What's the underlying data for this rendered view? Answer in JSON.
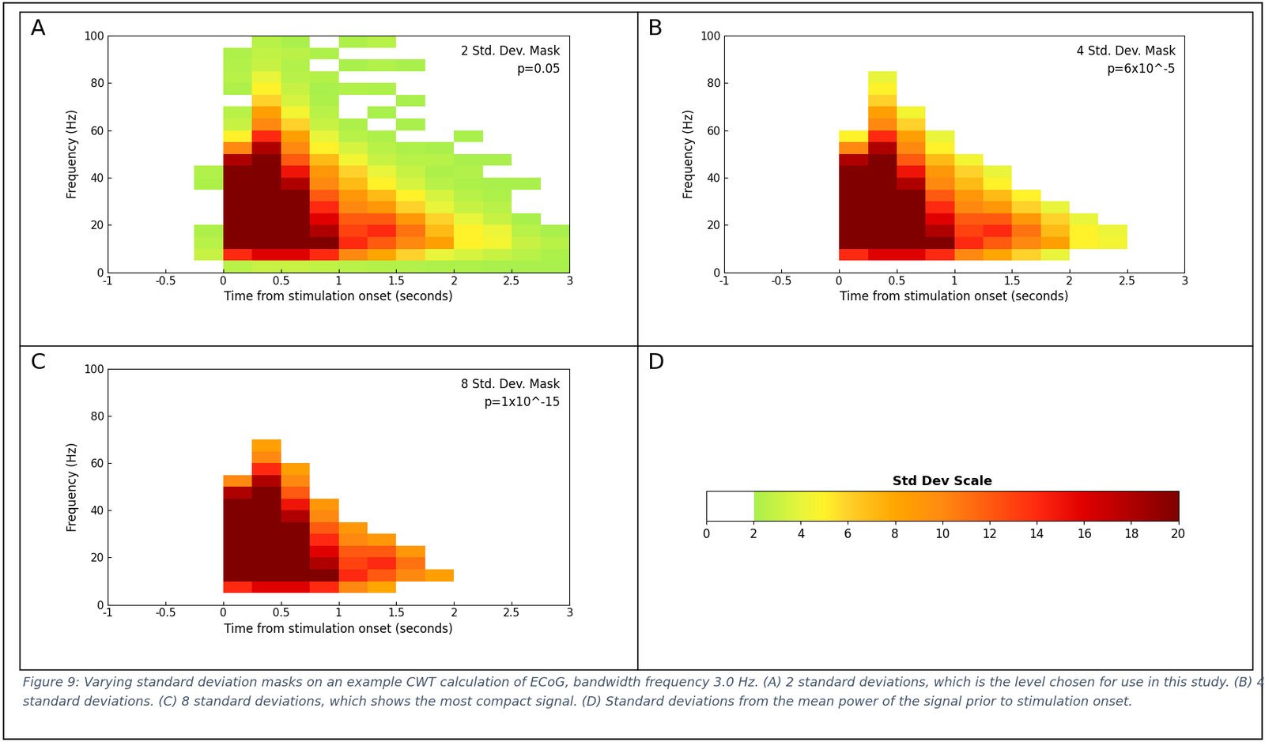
{
  "cwt": {
    "x_edges": [
      -1,
      -0.75,
      -0.5,
      -0.25,
      0,
      0.25,
      0.5,
      0.75,
      1,
      1.25,
      1.5,
      1.75,
      2,
      2.25,
      2.5,
      2.75,
      3
    ],
    "y_edges": [
      0,
      5,
      10,
      15,
      20,
      25,
      30,
      35,
      40,
      45,
      50,
      55,
      60,
      65,
      70,
      75,
      80,
      85,
      90,
      95,
      100
    ],
    "cells": [
      [
        0.5,
        0.5,
        0.5,
        1,
        2.5,
        3,
        3,
        2.8,
        2.5,
        2.4,
        2.3,
        2.2,
        2.2,
        2.1,
        2.1,
        2.1
      ],
      [
        0.5,
        0.5,
        0.5,
        3,
        14,
        16,
        16,
        14,
        10,
        8,
        6,
        4,
        3.5,
        3,
        2.5,
        2.2
      ],
      [
        0.5,
        0.5,
        0.5,
        2.5,
        20,
        20,
        20,
        20,
        14,
        12,
        10,
        8.5,
        5,
        4.5,
        3,
        2.5
      ],
      [
        0.5,
        0.5,
        0.5,
        2.2,
        20,
        20,
        20,
        18,
        13,
        14,
        11,
        7,
        5,
        4.2,
        2.5,
        2.1
      ],
      [
        0.5,
        0.5,
        0.5,
        1.5,
        20,
        20,
        20,
        16,
        12,
        12,
        9,
        6,
        4,
        3,
        2.1,
        1.5
      ],
      [
        0.5,
        0.5,
        0.5,
        1.2,
        20,
        20,
        20,
        14,
        10,
        9,
        6,
        4,
        3,
        2.5,
        1.5,
        1
      ],
      [
        0.5,
        0.5,
        0.5,
        1.5,
        20,
        20,
        20,
        12,
        9,
        7,
        5,
        3.5,
        2.5,
        2.2,
        1.5,
        1
      ],
      [
        0.5,
        0.5,
        0.5,
        2.2,
        20,
        20,
        18,
        10,
        7,
        5,
        3.5,
        2.5,
        2.2,
        2.1,
        2.1,
        1
      ],
      [
        0.5,
        0.5,
        0.5,
        2.3,
        20,
        20,
        15,
        9,
        6,
        4,
        3,
        2.2,
        2.3,
        1.5,
        1.2,
        1
      ],
      [
        0.5,
        0.5,
        0.5,
        1.5,
        18,
        20,
        12,
        7,
        4.5,
        3,
        2.5,
        2.5,
        2.1,
        2.1,
        1,
        1
      ],
      [
        0.5,
        0.5,
        0.5,
        1,
        10,
        18,
        10,
        5,
        3.5,
        2.5,
        2.2,
        2.1,
        1.5,
        1.5,
        1,
        1
      ],
      [
        0.5,
        0.5,
        0.5,
        1,
        5,
        14,
        8.5,
        4,
        2.5,
        2.2,
        1.8,
        1.5,
        2.1,
        1,
        1,
        1
      ],
      [
        0.5,
        0.5,
        0.5,
        1,
        3,
        10,
        6,
        3,
        2.2,
        1.5,
        2.1,
        1,
        1,
        1,
        1,
        1
      ],
      [
        0.5,
        0.5,
        0.5,
        1,
        2.5,
        8.5,
        4.5,
        2.5,
        2,
        2.1,
        1.5,
        1,
        1,
        1,
        1,
        1
      ],
      [
        0.5,
        0.5,
        0.5,
        1,
        2,
        6,
        3.5,
        2.2,
        1.8,
        1.5,
        2.1,
        1,
        1,
        1,
        1,
        1
      ],
      [
        0.5,
        0.5,
        0.5,
        1,
        2.2,
        5,
        3,
        2.1,
        2.3,
        2.2,
        1.2,
        1,
        1,
        1,
        1,
        1
      ],
      [
        0.5,
        0.5,
        0.5,
        1,
        2.5,
        4,
        2.5,
        2.4,
        1.5,
        1.5,
        1.2,
        1,
        1,
        1,
        1,
        1
      ],
      [
        0.5,
        0.5,
        0.5,
        1,
        2.3,
        3,
        2.3,
        1.5,
        2.1,
        2.3,
        2.1,
        1,
        1,
        1,
        1,
        1
      ],
      [
        0.5,
        0.5,
        0.5,
        1,
        2.2,
        2.8,
        2.6,
        2.2,
        1.5,
        1.5,
        1,
        1,
        1,
        1,
        1,
        1
      ],
      [
        0.5,
        0.5,
        0.5,
        1,
        2,
        2.5,
        2.1,
        1.5,
        2.2,
        2.5,
        1,
        1,
        1,
        1,
        1,
        1
      ]
    ]
  },
  "chart_data": [
    {
      "type": "heatmap",
      "label": "A",
      "annotations": [
        "2 Std. Dev. Mask",
        "p=0.05"
      ],
      "threshold": 2,
      "xlabel": "Time from stimulation onset (seconds)",
      "ylabel": "Frequency (Hz)",
      "xlim": [
        -1,
        3
      ],
      "xticks": [
        -1,
        -0.5,
        0,
        0.5,
        1,
        1.5,
        2,
        2.5,
        3
      ],
      "ylim": [
        0,
        100
      ],
      "yticks": [
        0,
        20,
        40,
        60,
        80,
        100
      ]
    },
    {
      "type": "heatmap",
      "label": "B",
      "annotations": [
        "4 Std. Dev. Mask",
        "p=6x10^-5"
      ],
      "threshold": 4,
      "xlabel": "Time from stimulation onset (seconds)",
      "ylabel": "Frequency (Hz)",
      "xlim": [
        -1,
        3
      ],
      "xticks": [
        -1,
        -0.5,
        0,
        0.5,
        1,
        1.5,
        2,
        2.5,
        3
      ],
      "ylim": [
        0,
        100
      ],
      "yticks": [
        0,
        20,
        40,
        60,
        80,
        100
      ]
    },
    {
      "type": "heatmap",
      "label": "C",
      "annotations": [
        "8 Std. Dev. Mask",
        "p=1x10^-15"
      ],
      "threshold": 8,
      "xlabel": "Time from stimulation onset (seconds)",
      "ylabel": "Frequency (Hz)",
      "xlim": [
        -1,
        3
      ],
      "xticks": [
        -1,
        -0.5,
        0,
        0.5,
        1,
        1.5,
        2,
        2.5,
        3
      ],
      "ylim": [
        0,
        100
      ],
      "yticks": [
        0,
        20,
        40,
        60,
        80,
        100
      ]
    }
  ],
  "colorbar": {
    "label": "D",
    "title": "Std Dev Scale",
    "range": [
      0,
      20
    ],
    "ticks": [
      0,
      2,
      4,
      6,
      8,
      10,
      12,
      14,
      16,
      18,
      20
    ]
  },
  "caption": "Figure 9: Varying standard deviation masks on an example CWT calculation of ECoG, bandwidth frequency 3.0 Hz. (A) 2 standard deviations, which is the level chosen for use in this study. (B) 4 standard deviations. (C) 8 standard deviations, which shows the most compact signal. (D) Standard deviations from the mean power of the signal prior to stimulation onset."
}
